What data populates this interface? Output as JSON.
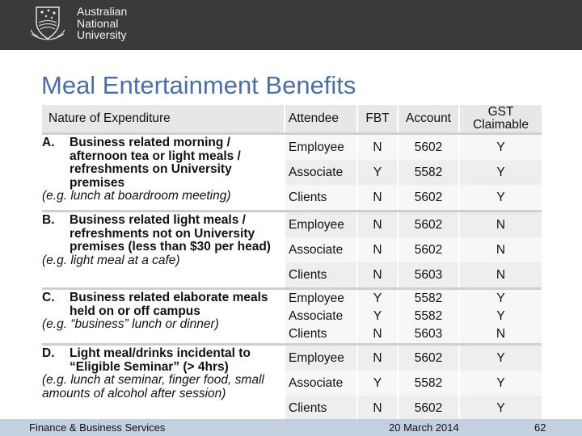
{
  "header": {
    "university_name": [
      "Australian",
      "National",
      "University"
    ]
  },
  "title": "Meal Entertainment Benefits",
  "table": {
    "headers": [
      "Nature of Expenditure",
      "Attendee",
      "FBT",
      "Account",
      "GST Claimable"
    ],
    "groups": [
      {
        "letter": "A.",
        "description": "Business related morning / afternoon tea or light meals / refreshments on University premises",
        "example": "(e.g. lunch at boardroom meeting)",
        "rows": [
          {
            "attendee": "Employee",
            "fbt": "N",
            "account": "5602",
            "gst": "Y"
          },
          {
            "attendee": "Associate",
            "fbt": "Y",
            "account": "5582",
            "gst": "Y"
          },
          {
            "attendee": "Clients",
            "fbt": "N",
            "account": "5602",
            "gst": "Y"
          }
        ]
      },
      {
        "letter": "B.",
        "description": "Business related light meals / refreshments not on University premises (less than $30 per head)",
        "example": "(e.g. light meal at a cafe)",
        "rows": [
          {
            "attendee": "Employee",
            "fbt": "N",
            "account": "5602",
            "gst": "N"
          },
          {
            "attendee": "Associate",
            "fbt": "N",
            "account": "5602",
            "gst": "N"
          },
          {
            "attendee": "Clients",
            "fbt": "N",
            "account": "5603",
            "gst": "N"
          }
        ]
      },
      {
        "letter": "C.",
        "description": "Business related elaborate meals held on or off campus",
        "example": "(e.g. “business” lunch or dinner)",
        "rows": [
          {
            "attendee": "Employee",
            "fbt": "Y",
            "account": "5582",
            "gst": "Y"
          },
          {
            "attendee": "Associate",
            "fbt": "Y",
            "account": "5582",
            "gst": "Y"
          },
          {
            "attendee": "Clients",
            "fbt": "N",
            "account": "5603",
            "gst": "N"
          }
        ]
      },
      {
        "letter": "D.",
        "description": "Light meal/drinks incidental to “Eligible Seminar” (> 4hrs)",
        "example": "(e.g. lunch at seminar, finger food, small amounts of alcohol after session)",
        "rows": [
          {
            "attendee": "Employee",
            "fbt": "N",
            "account": "5602",
            "gst": "Y"
          },
          {
            "attendee": "Associate",
            "fbt": "Y",
            "account": "5582",
            "gst": "Y"
          },
          {
            "attendee": "Clients",
            "fbt": "N",
            "account": "5602",
            "gst": "Y"
          }
        ]
      }
    ]
  },
  "footer": {
    "left": "Finance & Business Services",
    "date": "20 March 2014",
    "page": "62"
  },
  "colors": {
    "top_bar": "#3a3a3a",
    "title": "#4a6fa0",
    "footer_bar": "#c3d0e2"
  }
}
